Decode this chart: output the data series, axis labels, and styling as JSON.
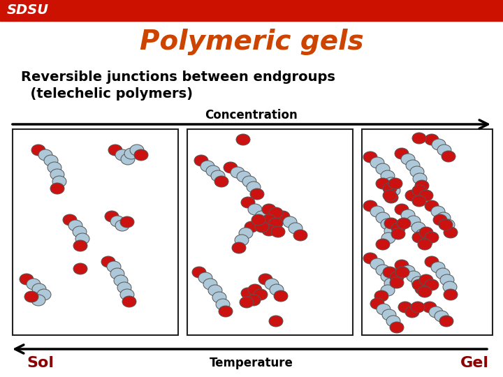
{
  "title": "Polymeric gels",
  "title_color": "#cc4400",
  "subtitle_line1": "Reversible junctions between endgroups",
  "subtitle_line2": "  (telechelic polymers)",
  "subtitle_color": "#000000",
  "header_bar_color": "#cc1100",
  "background_color": "#ffffff",
  "concentration_label": "Concentration",
  "temperature_label": "Temperature",
  "sol_label": "Sol",
  "gel_label": "Gel",
  "sol_gel_color": "#8b0000",
  "light_blue": "#adc8d8",
  "red_end": "#cc1111",
  "panel_border": "#222222"
}
